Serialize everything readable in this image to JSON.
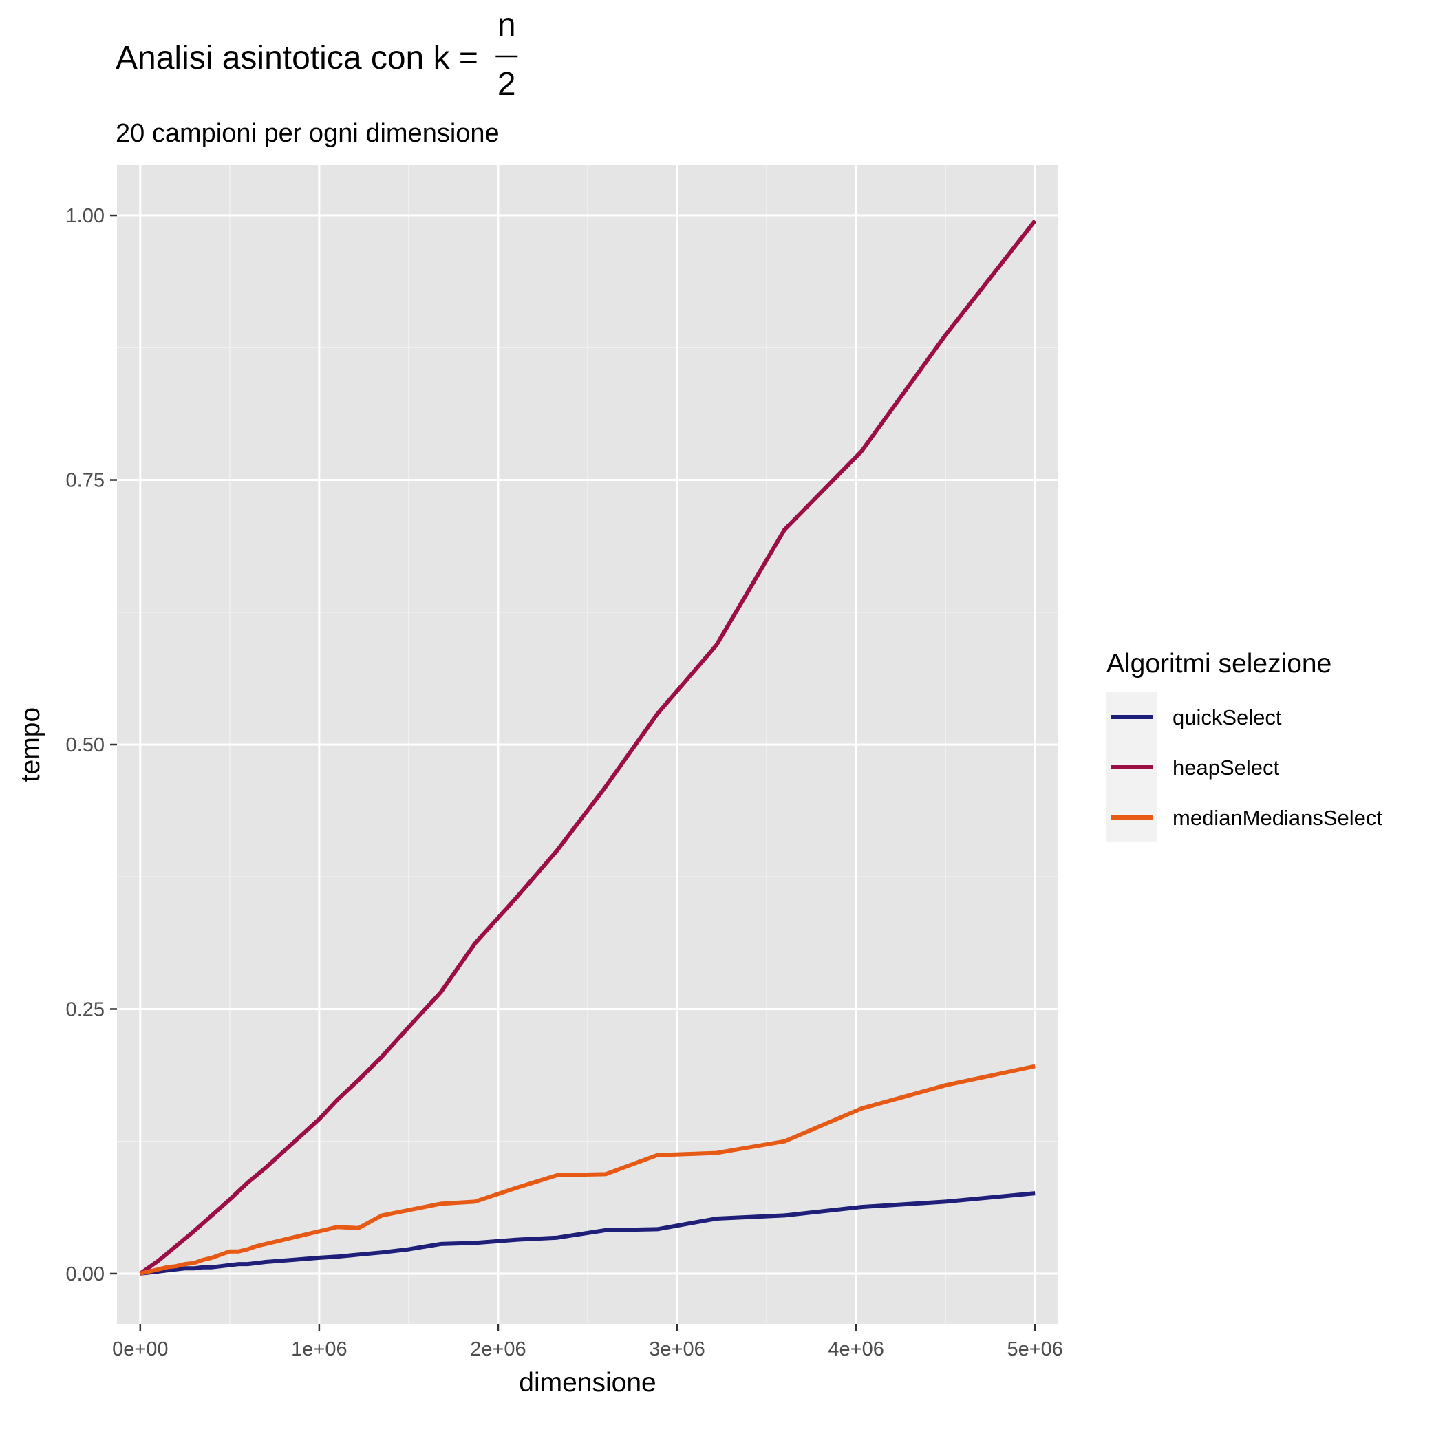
{
  "chart_data": {
    "type": "line",
    "title": {
      "prefix": "Analisi asintotica con k = ",
      "numerator": "n",
      "denominator": "2"
    },
    "subtitle": "20 campioni per ogni dimensione",
    "xlabel": "dimensione",
    "ylabel": "tempo",
    "xlim": [
      -130000,
      5130000
    ],
    "ylim": [
      -0.0475,
      1.0475
    ],
    "x_ticks": [
      0,
      1000000,
      2000000,
      3000000,
      4000000,
      5000000
    ],
    "x_tick_labels": [
      "0e+00",
      "1e+06",
      "2e+06",
      "3e+06",
      "4e+06",
      "5e+06"
    ],
    "y_ticks": [
      0,
      0.25,
      0.5,
      0.75,
      1.0
    ],
    "y_tick_labels": [
      "0.00",
      "0.25",
      "0.50",
      "0.75",
      "1.00"
    ],
    "grid": true,
    "legend": {
      "title": "Algoritmi selezione",
      "position": "right"
    },
    "series": [
      {
        "name": "quickSelect",
        "color": "#1f1f7a",
        "x": [
          0,
          100000,
          150000,
          200000,
          250000,
          300000,
          350000,
          400000,
          450000,
          500000,
          550000,
          600000,
          650000,
          700000,
          850000,
          1000000,
          1100000,
          1220000,
          1350000,
          1500000,
          1680000,
          1870000,
          2100000,
          2330000,
          2600000,
          2890000,
          3220000,
          3600000,
          4030000,
          4500000,
          5000000
        ],
        "y": [
          0,
          0.002,
          0.003,
          0.004,
          0.005,
          0.005,
          0.006,
          0.006,
          0.007,
          0.008,
          0.009,
          0.009,
          0.01,
          0.011,
          0.013,
          0.015,
          0.016,
          0.018,
          0.02,
          0.023,
          0.028,
          0.029,
          0.032,
          0.034,
          0.041,
          0.042,
          0.052,
          0.055,
          0.063,
          0.068,
          0.076
        ]
      },
      {
        "name": "heapSelect",
        "color": "#9b0e46",
        "x": [
          0,
          100000,
          200000,
          300000,
          400000,
          500000,
          600000,
          700000,
          850000,
          1000000,
          1100000,
          1220000,
          1350000,
          1500000,
          1680000,
          1870000,
          2100000,
          2330000,
          2600000,
          2890000,
          3220000,
          3600000,
          4030000,
          4500000,
          5000000
        ],
        "y": [
          0,
          0.012,
          0.026,
          0.04,
          0.055,
          0.07,
          0.086,
          0.1,
          0.123,
          0.146,
          0.164,
          0.183,
          0.205,
          0.233,
          0.266,
          0.312,
          0.355,
          0.4,
          0.46,
          0.529,
          0.594,
          0.703,
          0.777,
          0.887,
          0.995
        ]
      },
      {
        "name": "medianMediansSelect",
        "color": "#e65a16",
        "x": [
          0,
          100000,
          150000,
          200000,
          250000,
          300000,
          350000,
          400000,
          450000,
          500000,
          550000,
          600000,
          650000,
          700000,
          850000,
          1000000,
          1100000,
          1220000,
          1350000,
          1500000,
          1680000,
          1870000,
          2100000,
          2330000,
          2600000,
          2890000,
          3220000,
          3600000,
          4030000,
          4500000,
          5000000
        ],
        "y": [
          0,
          0.004,
          0.006,
          0.007,
          0.009,
          0.01,
          0.013,
          0.015,
          0.018,
          0.021,
          0.021,
          0.023,
          0.026,
          0.028,
          0.034,
          0.04,
          0.044,
          0.043,
          0.055,
          0.06,
          0.066,
          0.068,
          0.081,
          0.093,
          0.094,
          0.112,
          0.114,
          0.125,
          0.156,
          0.178,
          0.196
        ]
      }
    ]
  }
}
